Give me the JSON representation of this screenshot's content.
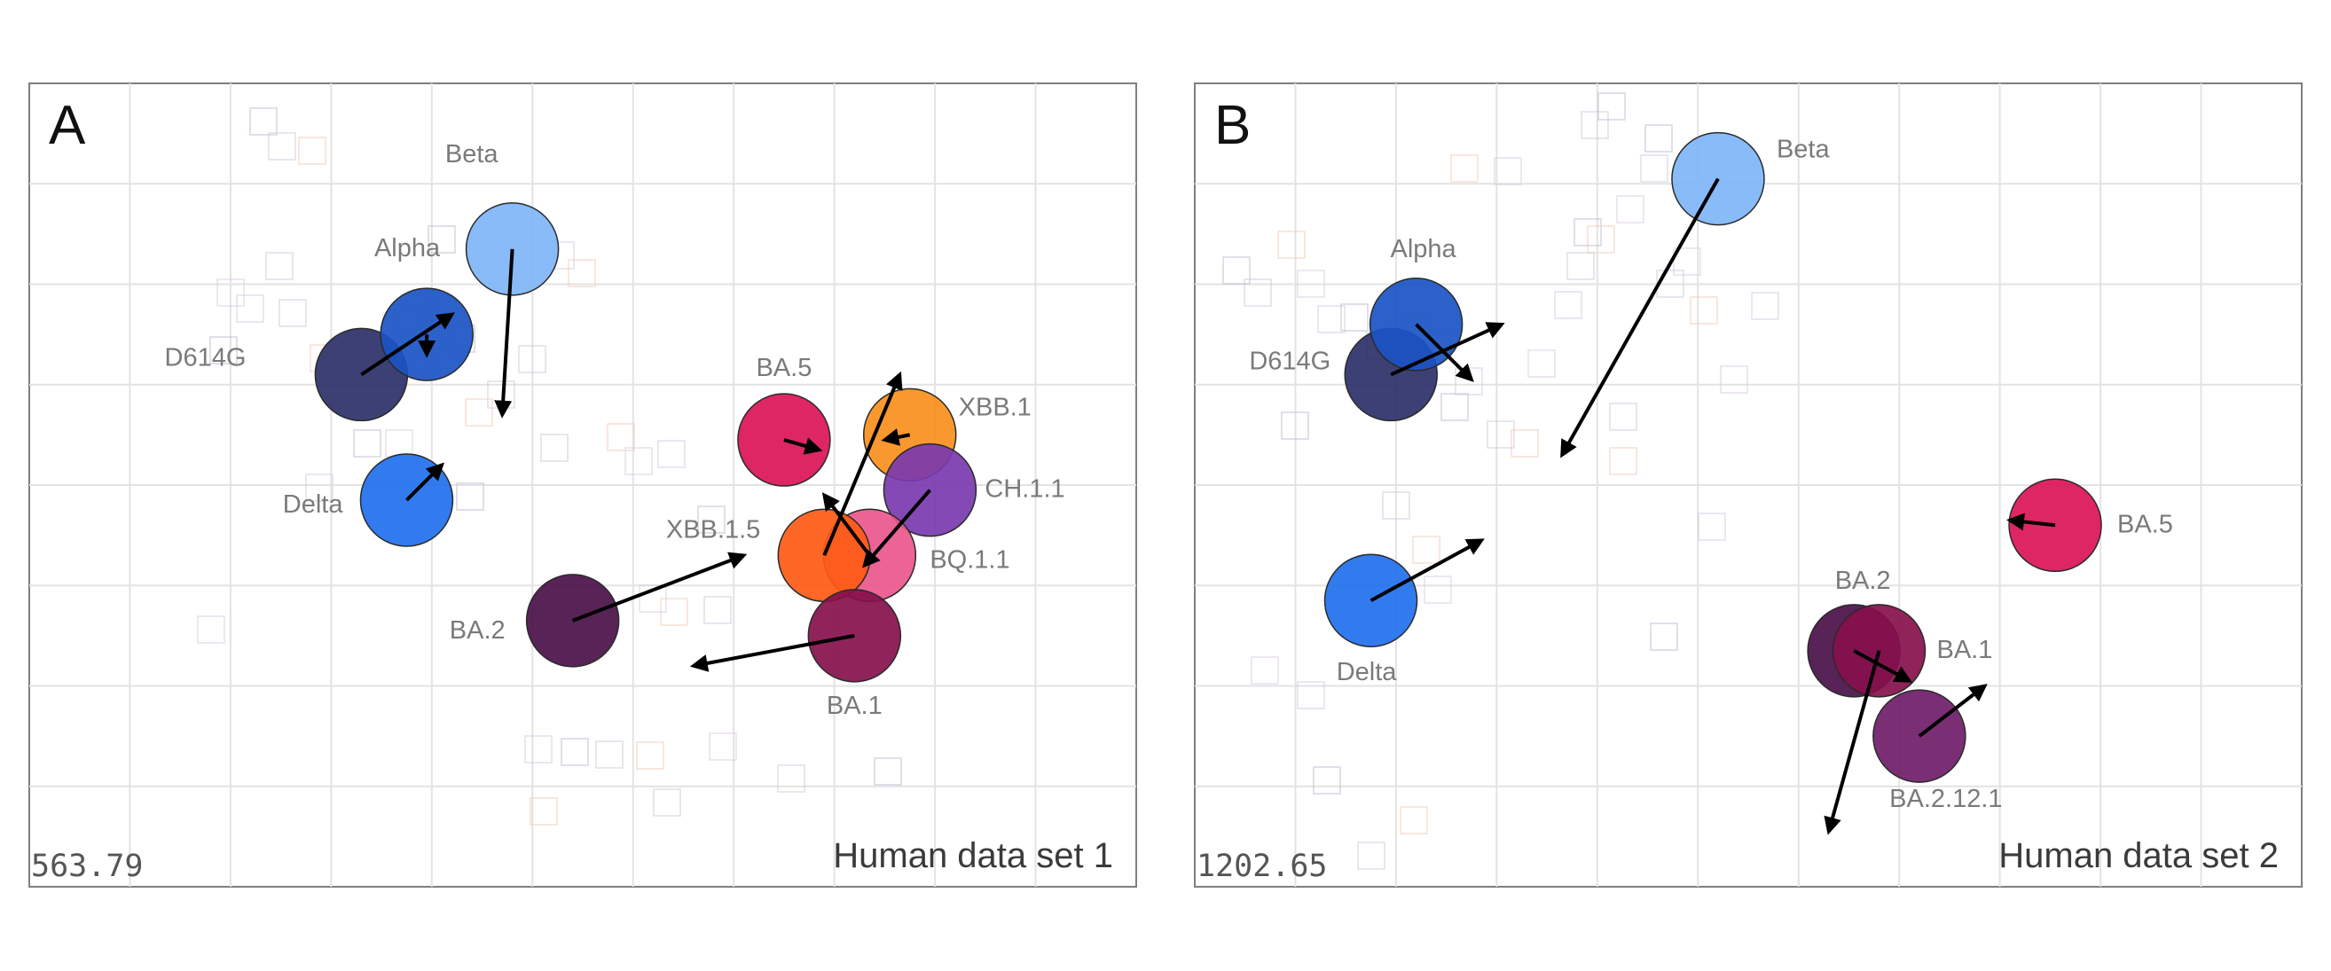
{
  "chart_data": [
    {
      "type": "scatter",
      "panel_label": "A",
      "title": "Human data set 1",
      "stress": "563.79",
      "grid": true,
      "xlim": [
        0,
        11
      ],
      "ylim": [
        0,
        8
      ],
      "points": [
        {
          "name": "D614G",
          "x": 3.3,
          "y": 5.1,
          "color": "#2c3068"
        },
        {
          "name": "Alpha",
          "x": 3.95,
          "y": 5.5,
          "color": "#1a54c4"
        },
        {
          "name": "Beta",
          "x": 4.8,
          "y": 6.35,
          "color": "#7eb5f7"
        },
        {
          "name": "Delta",
          "x": 3.75,
          "y": 3.85,
          "color": "#2070ee"
        },
        {
          "name": "BA.2",
          "x": 5.4,
          "y": 2.65,
          "color": "#4a1048"
        },
        {
          "name": "BA.5",
          "x": 7.5,
          "y": 4.45,
          "color": "#db1458"
        },
        {
          "name": "XBB.1",
          "x": 8.75,
          "y": 4.5,
          "color": "#f98f1c"
        },
        {
          "name": "CH.1.1",
          "x": 8.95,
          "y": 3.95,
          "color": "#7a3aae"
        },
        {
          "name": "BQ.1.1",
          "x": 8.35,
          "y": 3.3,
          "color": "#e9578c"
        },
        {
          "name": "XBB.1.5",
          "x": 7.9,
          "y": 3.3,
          "color": "#ff5a14"
        },
        {
          "name": "BA.1",
          "x": 8.2,
          "y": 2.5,
          "color": "#86104c"
        }
      ],
      "arrows": [
        {
          "from": [
            3.3,
            5.1
          ],
          "to": [
            4.2,
            5.7
          ]
        },
        {
          "from": [
            3.95,
            5.5
          ],
          "to": [
            3.95,
            5.3
          ]
        },
        {
          "from": [
            4.8,
            6.35
          ],
          "to": [
            4.7,
            4.7
          ]
        },
        {
          "from": [
            3.75,
            3.85
          ],
          "to": [
            4.1,
            4.2
          ]
        },
        {
          "from": [
            5.4,
            2.65
          ],
          "to": [
            7.1,
            3.3
          ]
        },
        {
          "from": [
            7.5,
            4.45
          ],
          "to": [
            7.85,
            4.35
          ]
        },
        {
          "from": [
            8.75,
            4.5
          ],
          "to": [
            8.5,
            4.45
          ]
        },
        {
          "from": [
            8.95,
            3.95
          ],
          "to": [
            8.3,
            3.2
          ]
        },
        {
          "from": [
            8.35,
            3.3
          ],
          "to": [
            7.9,
            3.9
          ]
        },
        {
          "from": [
            7.9,
            3.3
          ],
          "to": [
            8.65,
            5.1
          ]
        },
        {
          "from": [
            8.2,
            2.5
          ],
          "to": [
            6.6,
            2.2
          ]
        }
      ]
    },
    {
      "type": "scatter",
      "panel_label": "B",
      "title": "Human data set 2",
      "stress": "1202.65",
      "grid": true,
      "xlim": [
        0,
        11
      ],
      "ylim": [
        0,
        8
      ],
      "points": [
        {
          "name": "D614G",
          "x": 1.95,
          "y": 5.1,
          "color": "#2c3068"
        },
        {
          "name": "Alpha",
          "x": 2.2,
          "y": 5.6,
          "color": "#1a54c4"
        },
        {
          "name": "Beta",
          "x": 5.2,
          "y": 7.05,
          "color": "#7eb5f7"
        },
        {
          "name": "Delta",
          "x": 1.75,
          "y": 2.85,
          "color": "#2070ee"
        },
        {
          "name": "BA.5",
          "x": 8.55,
          "y": 3.6,
          "color": "#db1458"
        },
        {
          "name": "BA.2",
          "x": 6.55,
          "y": 2.35,
          "color": "#4a1048"
        },
        {
          "name": "BA.1",
          "x": 6.8,
          "y": 2.35,
          "color": "#86104c"
        },
        {
          "name": "BA.2.12.1",
          "x": 7.2,
          "y": 1.5,
          "color": "#6f1c68"
        }
      ],
      "arrows": [
        {
          "from": [
            1.95,
            5.1
          ],
          "to": [
            3.05,
            5.6
          ]
        },
        {
          "from": [
            2.2,
            5.6
          ],
          "to": [
            2.75,
            5.05
          ]
        },
        {
          "from": [
            5.2,
            7.05
          ],
          "to": [
            3.65,
            4.3
          ]
        },
        {
          "from": [
            1.75,
            2.85
          ],
          "to": [
            2.85,
            3.45
          ]
        },
        {
          "from": [
            8.55,
            3.6
          ],
          "to": [
            8.1,
            3.65
          ]
        },
        {
          "from": [
            6.55,
            2.35
          ],
          "to": [
            7.1,
            2.05
          ]
        },
        {
          "from": [
            6.8,
            2.35
          ],
          "to": [
            6.3,
            0.55
          ]
        },
        {
          "from": [
            7.2,
            1.5
          ],
          "to": [
            7.85,
            2.0
          ]
        }
      ]
    }
  ]
}
